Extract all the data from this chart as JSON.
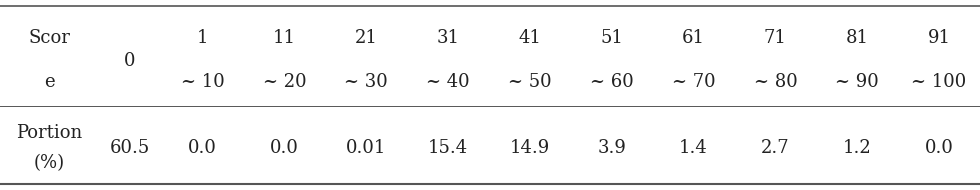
{
  "col_header_row1": [
    "Scor\ne",
    "0",
    "1\n~ 10",
    "11\n~ 20",
    "21\n~ 30",
    "31\n~ 40",
    "41\n~ 50",
    "51\n~ 60",
    "61\n~ 70",
    "71\n~ 80",
    "81\n~ 90",
    "91\n~ 100"
  ],
  "row_label": "Portion\n(%)",
  "values": [
    "60.5",
    "0.0",
    "0.0",
    "0.01",
    "15.4",
    "14.9",
    "3.9",
    "1.4",
    "2.7",
    "1.2",
    "0.0"
  ],
  "background_color": "#ffffff",
  "text_color": "#222222",
  "line_color": "#555555",
  "font_family": "serif",
  "header_fontsize": 13,
  "data_fontsize": 13,
  "figwidth": 9.8,
  "figheight": 1.9,
  "dpi": 100
}
